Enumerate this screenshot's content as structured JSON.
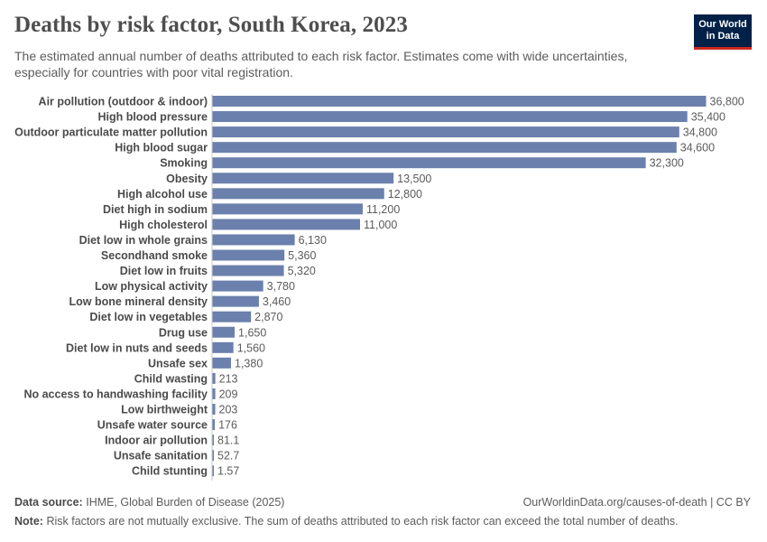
{
  "header": {
    "title": "Deaths by risk factor, South Korea, 2023",
    "subtitle": "The estimated annual number of deaths attributed to each risk factor. Estimates come with wide uncertainties, especially for countries with poor vital registration.",
    "logo_line1": "Our World",
    "logo_line2": "in Data"
  },
  "footer": {
    "source_label": "Data source:",
    "source_text": "IHME, Global Burden of Disease (2025)",
    "url_text": "OurWorldinData.org/causes-of-death | CC BY",
    "note_label": "Note:",
    "note_text": "Risk factors are not mutually exclusive. The sum of deaths attributed to each risk factor can exceed the total number of deaths."
  },
  "chart_data": {
    "type": "bar",
    "orientation": "horizontal",
    "title": "Deaths by risk factor, South Korea, 2023",
    "xlabel": "",
    "ylabel": "",
    "bar_color": "#6b80ac",
    "categories": [
      "Air pollution (outdoor & indoor)",
      "High blood pressure",
      "Outdoor particulate matter pollution",
      "High blood sugar",
      "Smoking",
      "Obesity",
      "High alcohol use",
      "Diet high in sodium",
      "High cholesterol",
      "Diet low in whole grains",
      "Secondhand smoke",
      "Diet low in fruits",
      "Low physical activity",
      "Low bone mineral density",
      "Diet low in vegetables",
      "Drug use",
      "Diet low in nuts and seeds",
      "Unsafe sex",
      "Child wasting",
      "No access to handwashing facility",
      "Low birthweight",
      "Unsafe water source",
      "Indoor air pollution",
      "Unsafe sanitation",
      "Child stunting"
    ],
    "values": [
      36800,
      35400,
      34800,
      34600,
      32300,
      13500,
      12800,
      11200,
      11000,
      6130,
      5360,
      5320,
      3780,
      3460,
      2870,
      1650,
      1560,
      1380,
      213,
      209,
      203,
      176,
      81.1,
      52.7,
      1.57
    ],
    "value_labels": [
      "36,800",
      "35,400",
      "34,800",
      "34,600",
      "32,300",
      "13,500",
      "12,800",
      "11,200",
      "11,000",
      "6,130",
      "5,360",
      "5,320",
      "3,780",
      "3,460",
      "2,870",
      "1,650",
      "1,560",
      "1,380",
      "213",
      "209",
      "203",
      "176",
      "81.1",
      "52.7",
      "1.57"
    ],
    "xlim": [
      0,
      36800
    ]
  }
}
